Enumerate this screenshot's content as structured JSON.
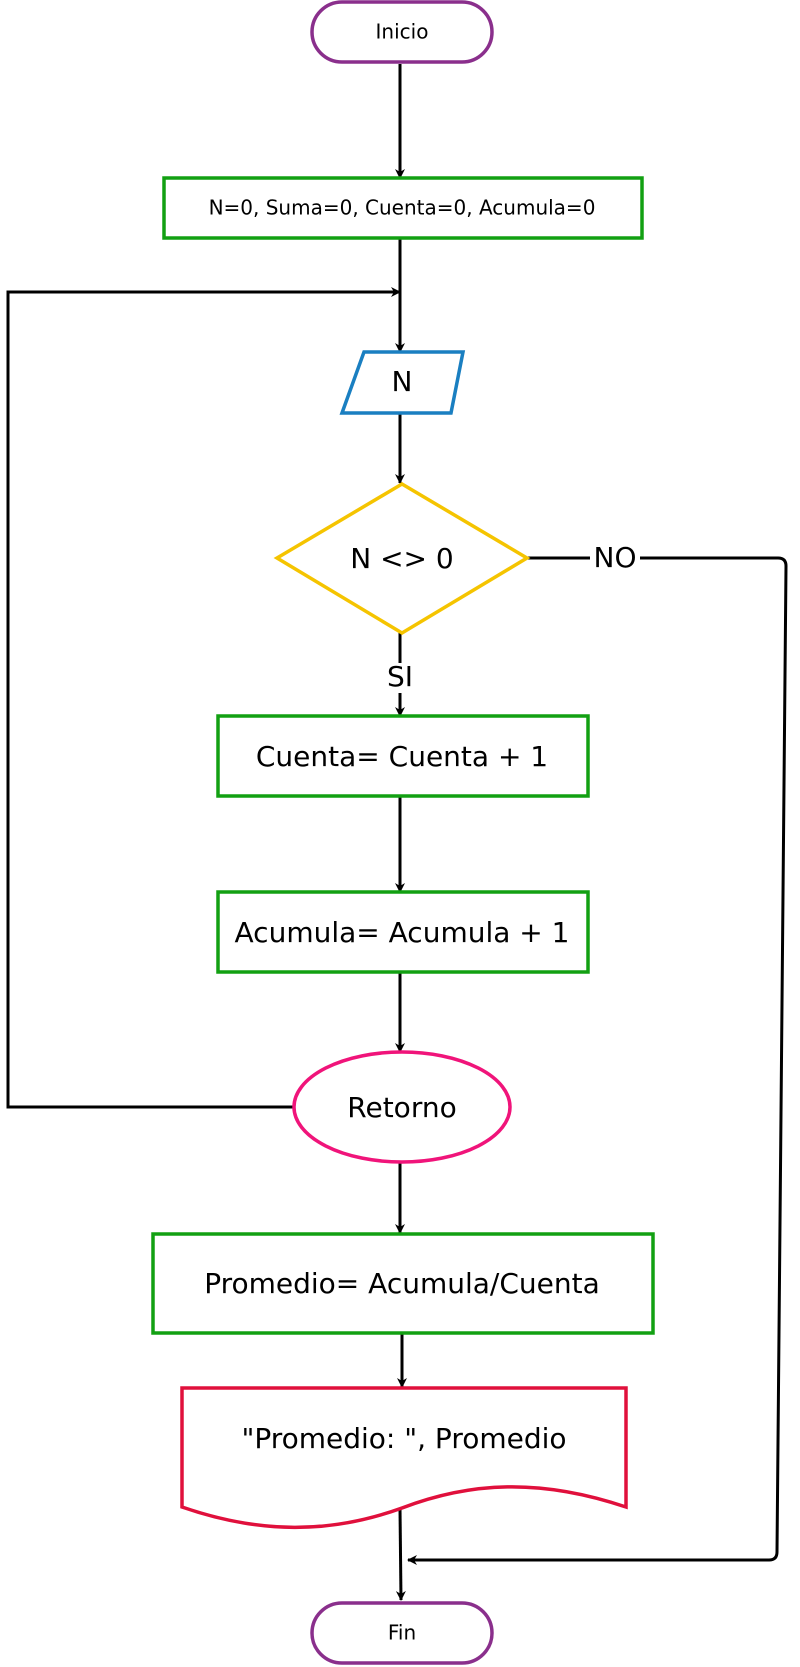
{
  "nodes": {
    "inicio": "Inicio",
    "init": "N=0, Suma=0, Cuenta=0, Acumula=0",
    "input_n": "N",
    "decision": "N <> 0",
    "cuenta": "Cuenta= Cuenta + 1",
    "acumula": "Acumula= Acumula + 1",
    "retorno": "Retorno",
    "promedio": "Promedio= Acumula/Cuenta",
    "output": "\"Promedio: \", Promedio",
    "fin": "Fin"
  },
  "edges": {
    "yes_label": "SI",
    "no_label": "NO"
  },
  "colors": {
    "terminal": "#8a2f8c",
    "process": "#12a012",
    "io": "#1a7fc1",
    "decision": "#f5c400",
    "connector": "#f0147a",
    "document": "#e0103c",
    "line": "#000000"
  }
}
